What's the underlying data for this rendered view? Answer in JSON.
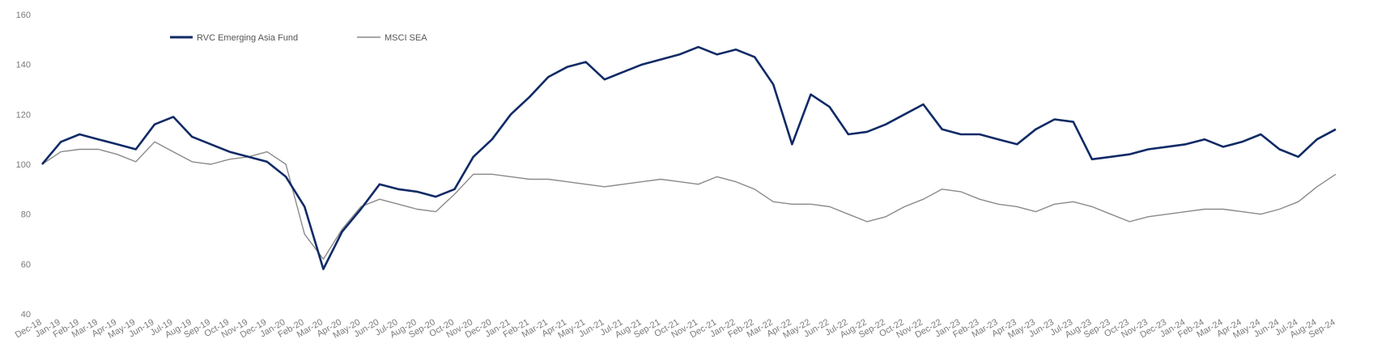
{
  "chart_data": {
    "type": "line",
    "title": "",
    "xlabel": "",
    "ylabel": "",
    "ylim": [
      40,
      160
    ],
    "yticks": [
      40,
      60,
      80,
      100,
      120,
      140,
      160
    ],
    "grid": false,
    "legend_position": "top-left",
    "categories": [
      "Dec-18",
      "Jan-19",
      "Feb-19",
      "Mar-19",
      "Apr-19",
      "May-19",
      "Jun-19",
      "Jul-19",
      "Aug-19",
      "Sep-19",
      "Oct-19",
      "Nov-19",
      "Dec-19",
      "Jan-20",
      "Feb-20",
      "Mar-20",
      "Apr-20",
      "May-20",
      "Jun-20",
      "Jul-20",
      "Aug-20",
      "Sep-20",
      "Oct-20",
      "Nov-20",
      "Dec-20",
      "Jan-21",
      "Feb-21",
      "Mar-21",
      "Apr-21",
      "May-21",
      "Jun-21",
      "Jul-21",
      "Aug-21",
      "Sep-21",
      "Oct-21",
      "Nov-21",
      "Dec-21",
      "Jan-22",
      "Feb-22",
      "Mar-22",
      "Apr-22",
      "May-22",
      "Jun-22",
      "Jul-22",
      "Aug-22",
      "Sep-22",
      "Oct-22",
      "Nov-22",
      "Dec-22",
      "Jan-23",
      "Feb-23",
      "Mar-23",
      "Apr-23",
      "May-23",
      "Jun-23",
      "Jul-23",
      "Aug-23",
      "Sep-23",
      "Oct-23",
      "Nov-23",
      "Dec-23",
      "Jan-24",
      "Feb-24",
      "Mar-24",
      "Apr-24",
      "May-24",
      "Jun-24",
      "Jul-24",
      "Aug-24",
      "Sep-24"
    ],
    "series": [
      {
        "name": "RVC Emerging Asia Fund",
        "color": "#0f2a66",
        "values": [
          100,
          109,
          112,
          110,
          108,
          106,
          116,
          119,
          111,
          108,
          105,
          103,
          101,
          95,
          83,
          58,
          73,
          82,
          92,
          90,
          89,
          87,
          90,
          103,
          110,
          120,
          127,
          135,
          139,
          141,
          134,
          137,
          140,
          142,
          144,
          147,
          144,
          146,
          143,
          132,
          108,
          128,
          123,
          112,
          113,
          116,
          120,
          124,
          114,
          112,
          112,
          110,
          108,
          114,
          118,
          117,
          102,
          103,
          104,
          106,
          107,
          108,
          110,
          107,
          109,
          112,
          106,
          103,
          110,
          114
        ]
      },
      {
        "name": "MSCI SEA",
        "color": "#8a8a8a",
        "values": [
          100,
          105,
          106,
          106,
          104,
          101,
          109,
          105,
          101,
          100,
          102,
          103,
          105,
          100,
          72,
          62,
          74,
          83,
          86,
          84,
          82,
          81,
          88,
          96,
          96,
          95,
          94,
          94,
          93,
          92,
          91,
          92,
          93,
          94,
          93,
          92,
          95,
          93,
          90,
          85,
          84,
          84,
          83,
          80,
          77,
          79,
          83,
          86,
          90,
          89,
          86,
          84,
          83,
          81,
          84,
          85,
          83,
          80,
          77,
          79,
          80,
          81,
          82,
          82,
          81,
          80,
          82,
          85,
          91,
          96
        ]
      }
    ]
  }
}
